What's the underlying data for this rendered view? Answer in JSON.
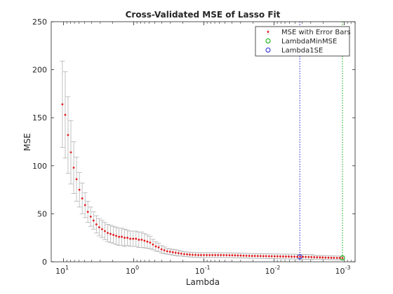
{
  "chart_data": {
    "type": "scatter",
    "title": "Cross-Validated MSE of Lasso Fit",
    "xlabel": "Lambda",
    "ylabel": "MSE",
    "x_scale": "log-reversed",
    "xlim": [
      15,
      0.0007
    ],
    "ylim": [
      0,
      250
    ],
    "x_ticks": [
      {
        "value": 10,
        "base": "10",
        "exp": "1"
      },
      {
        "value": 1,
        "base": "10",
        "exp": "0"
      },
      {
        "value": 0.1,
        "base": "10",
        "exp": "-1"
      },
      {
        "value": 0.01,
        "base": "10",
        "exp": "-2"
      },
      {
        "value": 0.001,
        "base": "10",
        "exp": "-3"
      }
    ],
    "y_ticks": [
      0,
      50,
      100,
      150,
      200,
      250
    ],
    "grid": false,
    "legend_position": "top-right",
    "series": [
      {
        "name": "MSE with Error Bars",
        "color": "#e41a1c",
        "errorbar_color": "#b3b3b3",
        "x": [
          10.4,
          9.48,
          8.64,
          7.87,
          7.17,
          6.54,
          5.95,
          5.43,
          4.94,
          4.51,
          4.11,
          3.74,
          3.41,
          3.11,
          2.83,
          2.58,
          2.35,
          2.14,
          1.95,
          1.78,
          1.62,
          1.48,
          1.35,
          1.23,
          1.12,
          1.02,
          0.929,
          0.846,
          0.771,
          0.703,
          0.64,
          0.584,
          0.532,
          0.485,
          0.442,
          0.402,
          0.367,
          0.334,
          0.304,
          0.277,
          0.253,
          0.23,
          0.21,
          0.191,
          0.174,
          0.159,
          0.145,
          0.132,
          0.12,
          0.11,
          0.1,
          0.0911,
          0.083,
          0.0757,
          0.069,
          0.0628,
          0.0573,
          0.0522,
          0.0476,
          0.0433,
          0.0395,
          0.036,
          0.0328,
          0.0299,
          0.0272,
          0.0248,
          0.0226,
          0.0206,
          0.0188,
          0.0171,
          0.0156,
          0.0142,
          0.013,
          0.0118,
          0.0108,
          0.00982,
          0.00895,
          0.00816,
          0.00743,
          0.00677,
          0.00617,
          0.00563,
          0.00513,
          0.00467,
          0.00426,
          0.00388,
          0.00354,
          0.00322,
          0.00294,
          0.00268,
          0.00244,
          0.00222,
          0.00203,
          0.00185,
          0.00168,
          0.00153,
          0.0014,
          0.00127,
          0.00116,
          0.00106
        ],
        "y": [
          164,
          153,
          132,
          114,
          98,
          86,
          75,
          66,
          59,
          52,
          47,
          43,
          39,
          36,
          34,
          32,
          30,
          29,
          28,
          27,
          26,
          26,
          25,
          25,
          24,
          24,
          24,
          23,
          23,
          22,
          21,
          20,
          18,
          16,
          15,
          13,
          12,
          11,
          10.5,
          10,
          9.5,
          9,
          8.5,
          8,
          7.8,
          7.5,
          7.3,
          7.2,
          7,
          7,
          7,
          7,
          7,
          7,
          7,
          7,
          7,
          6.9,
          6.9,
          6.8,
          6.8,
          6.7,
          6.6,
          6.5,
          6.4,
          6.3,
          6.2,
          6.1,
          6.1,
          6,
          6,
          5.9,
          5.9,
          5.8,
          5.8,
          5.7,
          5.7,
          5.6,
          5.6,
          5.5,
          5.5,
          5.4,
          5.4,
          5.3,
          5.3,
          5.2,
          5.1,
          5,
          4.9,
          4.8,
          4.7,
          4.6,
          4.5,
          4.4,
          4.3,
          4.2,
          4.1,
          4,
          4,
          4
        ],
        "err": [
          45,
          45,
          40,
          33,
          27,
          23,
          18,
          16,
          13,
          11,
          10,
          9,
          9,
          9,
          9,
          9,
          9,
          9,
          9,
          9,
          9,
          9,
          9,
          8,
          8,
          8,
          8,
          8,
          8,
          7.5,
          7,
          6.5,
          5.5,
          5,
          4.5,
          4,
          3.5,
          3,
          3,
          3,
          3,
          3,
          2.5,
          2.5,
          2.5,
          2.5,
          2.5,
          2.5,
          2.5,
          2.5,
          2.5,
          2.5,
          2.5,
          2.5,
          2.5,
          2.5,
          2.5,
          2.5,
          2.5,
          2.5,
          2.5,
          2.5,
          2.5,
          2.5,
          2.5,
          2.5,
          2.5,
          2.5,
          2.5,
          2.5,
          2.5,
          2.5,
          2.5,
          2.5,
          2.5,
          2.5,
          2.5,
          2.5,
          2.5,
          2.5,
          2.5,
          2.5,
          2.5,
          2.5,
          2.5,
          2.5,
          2.5,
          2.5,
          2.5,
          2,
          2,
          2,
          2,
          2,
          2,
          2,
          2,
          2,
          2,
          2
        ]
      },
      {
        "name": "LambdaMinMSE",
        "color": "#00aa00",
        "marker": "circle",
        "line": "dotted",
        "x": [
          0.00106
        ],
        "y": [
          4
        ]
      },
      {
        "name": "Lambda1SE",
        "color": "#1f1fd0",
        "marker": "circle",
        "line": "dotted",
        "x": [
          0.0043
        ],
        "y": [
          5.3
        ]
      }
    ]
  }
}
